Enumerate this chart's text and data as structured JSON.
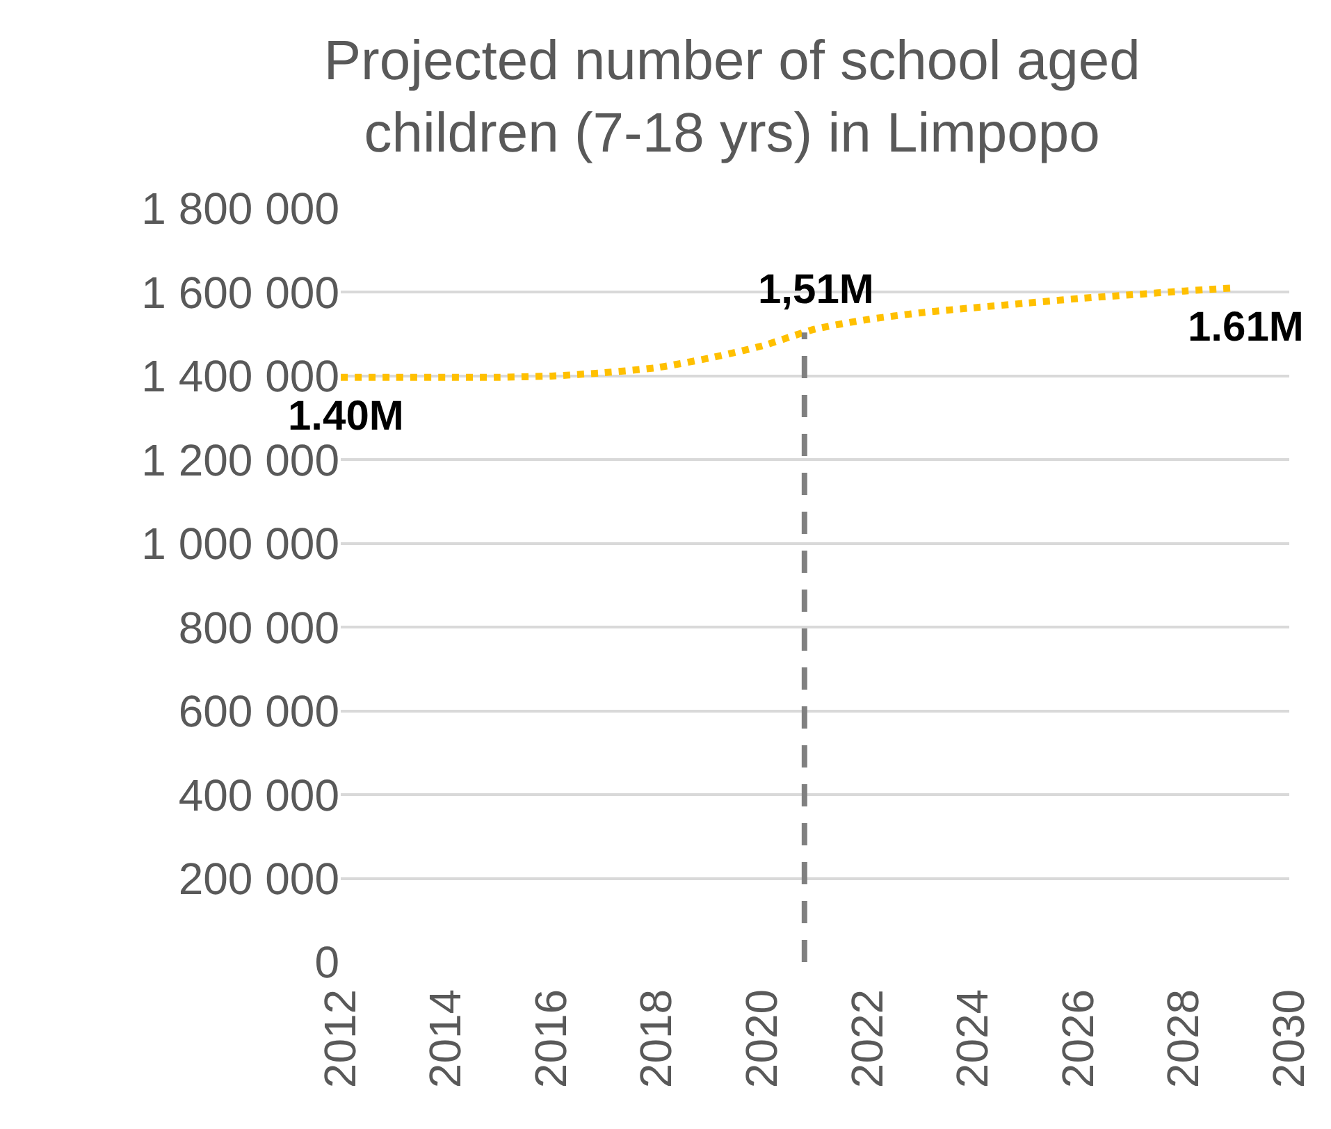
{
  "chart_data": {
    "type": "line",
    "title": "Projected number of school aged children (7-18 yrs) in Limpopo",
    "x": [
      2012,
      2013,
      2014,
      2015,
      2016,
      2017,
      2018,
      2019,
      2020,
      2021,
      2022,
      2023,
      2024,
      2025,
      2026,
      2027,
      2028,
      2029
    ],
    "series": [
      {
        "color": "#ffc000",
        "values": [
          1397000,
          1397000,
          1397000,
          1397000,
          1400000,
          1408000,
          1420000,
          1443000,
          1472000,
          1512000,
          1535000,
          1551000,
          1563000,
          1574000,
          1585000,
          1594000,
          1603000,
          1611000
        ]
      }
    ],
    "line_style": "dotted",
    "marker": "none",
    "grid": "y",
    "xlim": [
      2012,
      2030
    ],
    "xticks": [
      2012,
      2014,
      2016,
      2018,
      2020,
      2022,
      2024,
      2026,
      2028,
      2030
    ],
    "ylim": [
      0,
      1800000
    ],
    "yticks": [
      0,
      {
        "value": 200000,
        "label": "200 000"
      },
      {
        "value": 400000,
        "label": "400 000"
      },
      {
        "value": 600000,
        "label": "600 000"
      },
      {
        "value": 800000,
        "label": "800 000"
      },
      {
        "value": 1000000,
        "label": "1 000 000"
      },
      {
        "value": 1200000,
        "label": "1 200 000"
      },
      {
        "value": 1400000,
        "label": "1 400 000"
      },
      {
        "value": 1600000,
        "label": "1 600 000"
      },
      {
        "value": 1800000,
        "label": "1 800 000"
      }
    ],
    "ref_lines": [
      {
        "axis": "x",
        "value": 2020.8,
        "color": "#808080",
        "line_style": "dashed"
      }
    ],
    "annotations": [
      {
        "text": "1.40M",
        "x": 2012,
        "y": 1397000
      },
      {
        "text": "1,51M",
        "x": 2021,
        "y": 1512000
      },
      {
        "text": "1.61M",
        "x": 2029,
        "y": 1611000
      }
    ]
  }
}
